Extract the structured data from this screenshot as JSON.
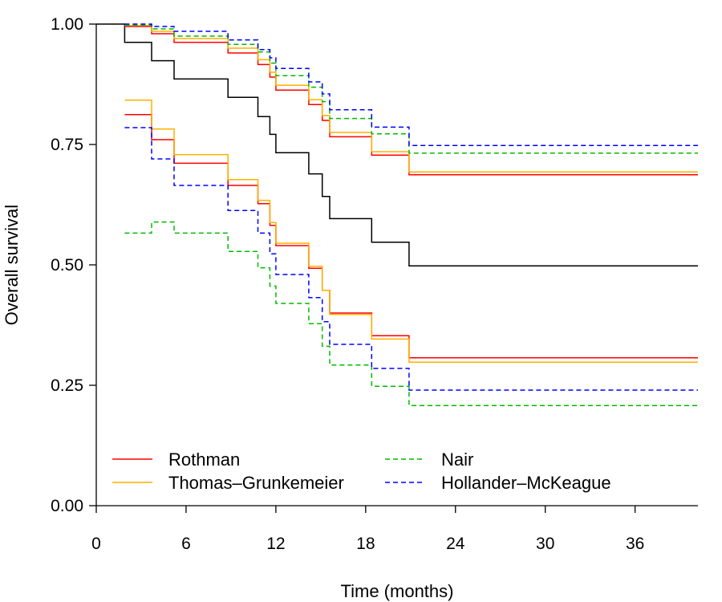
{
  "chart_data": {
    "type": "line",
    "step": true,
    "xlabel": "Time (months)",
    "ylabel": "Overall survival",
    "xlim": [
      0,
      40.2
    ],
    "ylim": [
      0,
      1
    ],
    "xticks": [
      0,
      6,
      12,
      18,
      24,
      30,
      36
    ],
    "yticks": [
      0,
      0.25,
      0.5,
      0.75,
      1
    ],
    "ytick_labels": [
      "0.00",
      "0.25",
      "0.50",
      "0.75",
      "1.00"
    ],
    "grid": false,
    "legend_position": "bottom-left",
    "legend": [
      {
        "label": "Rothman",
        "color": "#ff0000",
        "dash": "solid"
      },
      {
        "label": "Thomas–Grunkemeier",
        "color": "#ffb000",
        "dash": "solid"
      },
      {
        "label": "Nair",
        "color": "#00bb00",
        "dash": "dashed"
      },
      {
        "label": "Hollander–McKeague",
        "color": "#0000ff",
        "dash": "dashed"
      }
    ],
    "series": [
      {
        "color": "#000000",
        "dash": "solid",
        "x": [
          0,
          1.9,
          3.7,
          5.2,
          8.8,
          10.8,
          11.6,
          12,
          14.2,
          15.1,
          15.6,
          18.4,
          20.9,
          40.2
        ],
        "y": [
          1,
          0.962,
          0.924,
          0.886,
          0.848,
          0.808,
          0.771,
          0.733,
          0.689,
          0.642,
          0.596,
          0.547,
          0.498,
          0.498
        ]
      },
      {
        "name": "Rothman",
        "color": "#ff0000",
        "dash": "solid",
        "x": [
          1.9,
          3.7,
          5.2,
          8.8,
          10.8,
          11.6,
          12,
          14.2,
          15.1,
          15.6,
          18.4,
          20.9,
          40.2
        ],
        "y": [
          0.995,
          0.98,
          0.962,
          0.94,
          0.916,
          0.89,
          0.863,
          0.833,
          0.8,
          0.766,
          0.728,
          0.687,
          0.687
        ]
      },
      {
        "name": "Thomas–Grunkemeier",
        "color": "#ffb000",
        "dash": "solid",
        "x": [
          1.9,
          3.7,
          5.2,
          8.8,
          10.8,
          11.6,
          12,
          14.2,
          15.1,
          15.6,
          18.4,
          20.9,
          40.2
        ],
        "y": [
          0.997,
          0.985,
          0.97,
          0.95,
          0.926,
          0.9,
          0.873,
          0.843,
          0.81,
          0.775,
          0.735,
          0.693,
          0.693
        ]
      },
      {
        "name": "Nair",
        "color": "#00bb00",
        "dash": "dashed",
        "x": [
          1.9,
          3.7,
          5.2,
          8.8,
          10.8,
          11.6,
          12,
          14.2,
          15.1,
          15.6,
          18.4,
          20.9,
          40.2
        ],
        "y": [
          0.998,
          0.99,
          0.975,
          0.958,
          0.942,
          0.919,
          0.893,
          0.869,
          0.839,
          0.804,
          0.772,
          0.732,
          0.732
        ]
      },
      {
        "name": "Hollander–McKeague",
        "color": "#0000ff",
        "dash": "dashed",
        "x": [
          1.9,
          3.7,
          5.2,
          8.8,
          10.8,
          11.6,
          12,
          14.2,
          15.1,
          15.6,
          18.4,
          20.9,
          40.2
        ],
        "y": [
          1.0,
          0.995,
          0.985,
          0.967,
          0.947,
          0.93,
          0.908,
          0.88,
          0.855,
          0.822,
          0.786,
          0.748,
          0.748
        ]
      },
      {
        "name": "Rothman",
        "color": "#ff0000",
        "dash": "solid",
        "x": [
          1.9,
          3.7,
          5.2,
          8.8,
          10.8,
          11.6,
          12,
          14.2,
          15.1,
          15.6,
          18.4,
          20.9,
          40.2
        ],
        "y": [
          0.812,
          0.76,
          0.711,
          0.665,
          0.627,
          0.582,
          0.54,
          0.493,
          0.447,
          0.4,
          0.353,
          0.307,
          0.307
        ]
      },
      {
        "name": "Thomas–Grunkemeier",
        "color": "#ffb000",
        "dash": "solid",
        "x": [
          1.9,
          3.7,
          5.2,
          8.8,
          10.8,
          11.6,
          12,
          14.2,
          15.1,
          15.6,
          18.4,
          20.9,
          40.2
        ],
        "y": [
          0.842,
          0.782,
          0.729,
          0.677,
          0.634,
          0.588,
          0.545,
          0.497,
          0.447,
          0.397,
          0.346,
          0.298,
          0.298
        ]
      },
      {
        "name": "Nair",
        "color": "#00bb00",
        "dash": "dashed",
        "x": [
          1.9,
          3.7,
          5.2,
          8.8,
          10.8,
          11.6,
          12,
          14.2,
          15.1,
          15.6,
          18.4,
          20.9,
          40.2
        ],
        "y": [
          0.566,
          0.589,
          0.566,
          0.528,
          0.494,
          0.456,
          0.42,
          0.378,
          0.331,
          0.292,
          0.248,
          0.208,
          0.208
        ]
      },
      {
        "name": "Hollander–McKeague",
        "color": "#0000ff",
        "dash": "dashed",
        "x": [
          1.9,
          3.7,
          5.2,
          8.8,
          10.8,
          11.6,
          12,
          14.2,
          15.1,
          15.6,
          18.4,
          20.9,
          40.2
        ],
        "y": [
          0.785,
          0.72,
          0.665,
          0.613,
          0.566,
          0.523,
          0.48,
          0.432,
          0.382,
          0.335,
          0.285,
          0.24,
          0.24
        ]
      }
    ]
  }
}
